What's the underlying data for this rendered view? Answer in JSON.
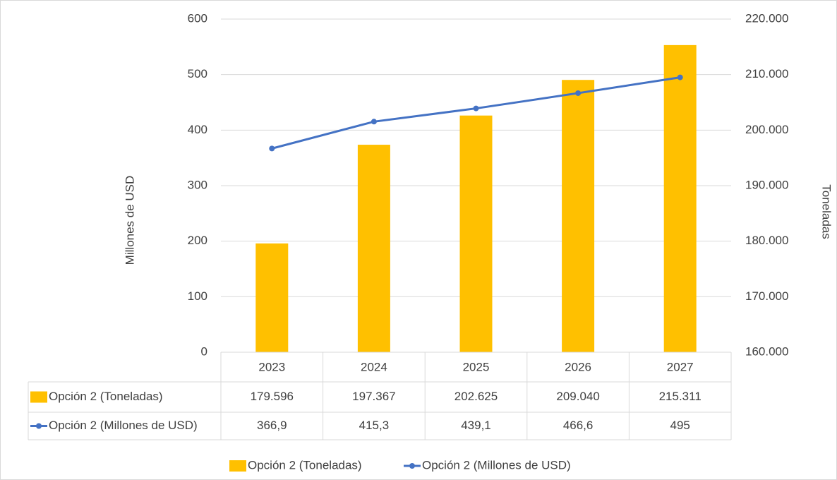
{
  "chart_data": {
    "type": "bar_line_table",
    "categories": [
      "2023",
      "2024",
      "2025",
      "2026",
      "2027"
    ],
    "ylabel": "Millones de USD",
    "y2label": "Toneladas",
    "ylim": [
      0,
      600
    ],
    "yticks": [
      0,
      100,
      200,
      300,
      400,
      500,
      600
    ],
    "y2lim": [
      160000,
      220000
    ],
    "y2ticks": [
      {
        "value": 160000,
        "label": "160.000"
      },
      {
        "value": 170000,
        "label": "170.000"
      },
      {
        "value": 180000,
        "label": "180.000"
      },
      {
        "value": 190000,
        "label": "190.000"
      },
      {
        "value": 200000,
        "label": "200.000"
      },
      {
        "value": 210000,
        "label": "210.000"
      },
      {
        "value": 220000,
        "label": "220.000"
      }
    ],
    "grid": true,
    "legend": "bottom",
    "series": [
      {
        "name": "Opción 2 (Toneladas)",
        "type": "bar",
        "axis": "y2",
        "color": "#FFC000",
        "values": [
          179596,
          197367,
          202625,
          209040,
          215311
        ],
        "value_labels": [
          "179.596",
          "197.367",
          "202.625",
          "209.040",
          "215.311"
        ]
      },
      {
        "name": "Opción 2 (Millones de USD)",
        "type": "line",
        "axis": "y",
        "color": "#4472C4",
        "values": [
          366.9,
          415.3,
          439.1,
          466.6,
          495
        ],
        "value_labels": [
          "366,9",
          "415,3",
          "439,1",
          "466,6",
          "495"
        ]
      }
    ]
  }
}
